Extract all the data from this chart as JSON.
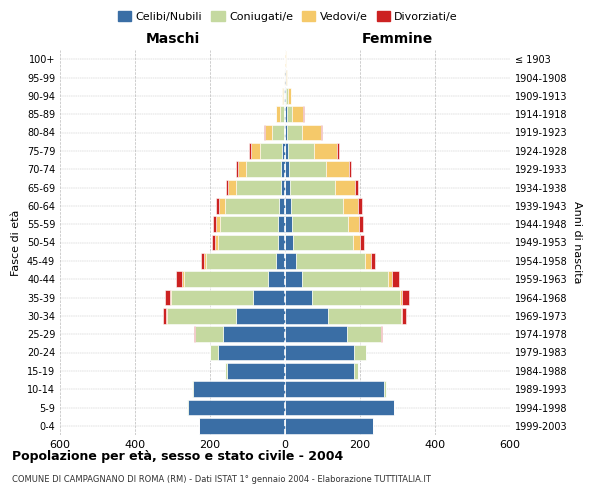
{
  "age_groups": [
    "0-4",
    "5-9",
    "10-14",
    "15-19",
    "20-24",
    "25-29",
    "30-34",
    "35-39",
    "40-44",
    "45-49",
    "50-54",
    "55-59",
    "60-64",
    "65-69",
    "70-74",
    "75-79",
    "80-84",
    "85-89",
    "90-94",
    "95-99",
    "100+"
  ],
  "birth_years": [
    "1999-2003",
    "1994-1998",
    "1989-1993",
    "1984-1988",
    "1979-1983",
    "1974-1978",
    "1969-1973",
    "1964-1968",
    "1959-1963",
    "1954-1958",
    "1949-1953",
    "1944-1948",
    "1939-1943",
    "1934-1938",
    "1929-1933",
    "1924-1928",
    "1919-1923",
    "1914-1918",
    "1909-1913",
    "1904-1908",
    "≤ 1903"
  ],
  "colors": {
    "celibi": "#3a6ea5",
    "coniugati": "#c5d9a0",
    "vedovi": "#f5c96a",
    "divorziati": "#cc2222"
  },
  "legend_labels": [
    "Celibi/Nubili",
    "Coniugati/e",
    "Vedovi/e",
    "Divorziati/e"
  ],
  "title": "Popolazione per età, sesso e stato civile - 2004",
  "subtitle": "COMUNE DI CAMPAGNANO DI ROMA (RM) - Dati ISTAT 1° gennaio 2004 - Elaborazione TUTTITALIA.IT",
  "xlabel_left": "Maschi",
  "xlabel_right": "Femmine",
  "ylabel_left": "Fasce di età",
  "ylabel_right": "Anni di nascita",
  "maschi": {
    "celibi": [
      230,
      260,
      245,
      155,
      180,
      165,
      130,
      85,
      45,
      25,
      20,
      18,
      15,
      12,
      10,
      7,
      4,
      3,
      2,
      1,
      1
    ],
    "coniugati": [
      0,
      1,
      2,
      5,
      20,
      75,
      185,
      220,
      225,
      185,
      160,
      155,
      145,
      120,
      95,
      60,
      30,
      10,
      3,
      0,
      0
    ],
    "vedovi": [
      0,
      0,
      0,
      0,
      0,
      1,
      2,
      3,
      5,
      5,
      8,
      10,
      15,
      20,
      20,
      25,
      20,
      10,
      4,
      1,
      0
    ],
    "divorziati": [
      0,
      0,
      0,
      0,
      1,
      2,
      8,
      12,
      15,
      10,
      8,
      8,
      8,
      5,
      5,
      5,
      2,
      1,
      0,
      0,
      0
    ]
  },
  "femmine": {
    "nubili": [
      235,
      290,
      265,
      185,
      185,
      165,
      115,
      72,
      45,
      28,
      20,
      18,
      15,
      12,
      10,
      8,
      5,
      4,
      2,
      2,
      1
    ],
    "coniugate": [
      0,
      1,
      3,
      10,
      30,
      90,
      195,
      235,
      230,
      185,
      160,
      150,
      140,
      120,
      100,
      70,
      40,
      15,
      5,
      1,
      0
    ],
    "vedove": [
      0,
      0,
      0,
      0,
      1,
      1,
      3,
      5,
      10,
      15,
      20,
      30,
      40,
      55,
      60,
      60,
      50,
      30,
      10,
      3,
      1
    ],
    "divorziate": [
      0,
      0,
      0,
      0,
      1,
      3,
      10,
      18,
      20,
      12,
      10,
      10,
      10,
      8,
      5,
      5,
      3,
      1,
      0,
      0,
      0
    ]
  },
  "xlim": 600,
  "background_color": "#ffffff",
  "grid_color": "#bbbbbb"
}
